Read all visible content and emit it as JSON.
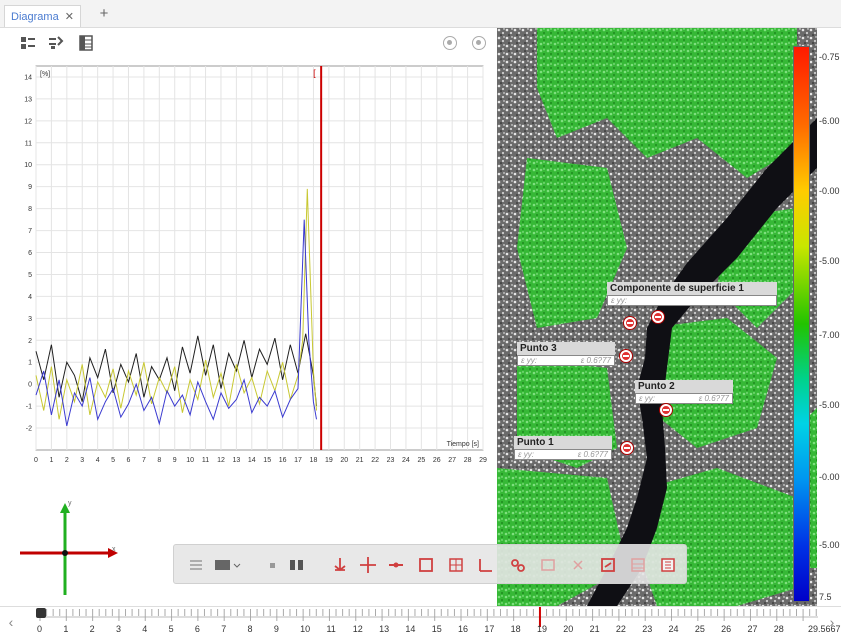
{
  "tabs": [
    {
      "label": "Diagrama",
      "close": "✕"
    }
  ],
  "tab_add": "+",
  "chart_data": {
    "type": "line",
    "xlabel": "Tiempo [s]",
    "ylabel": "[%]",
    "xlim": [
      0,
      29
    ],
    "ylim": [
      -3,
      14.5
    ],
    "xticks": [
      "0",
      "1",
      "2",
      "3",
      "4",
      "5",
      "6",
      "7",
      "8",
      "9",
      "10",
      "11",
      "12",
      "13",
      "14",
      "15",
      "16",
      "17",
      "18",
      "19",
      "20",
      "21",
      "22",
      "23",
      "24",
      "25",
      "26",
      "27",
      "28",
      "29"
    ],
    "yticks": [
      "14",
      "13",
      "12",
      "11",
      "10",
      "9",
      "8",
      "7",
      "6",
      "5",
      "4",
      "3",
      "2",
      "1",
      "0",
      "-1",
      "-2"
    ],
    "cursor_x": 18.5,
    "cursor_label": "[",
    "series": [
      {
        "color": "#1f1f1f",
        "x": [
          0,
          0.5,
          1,
          1.5,
          2,
          2.5,
          3,
          3.5,
          4,
          4.5,
          5,
          5.5,
          6,
          6.5,
          7,
          7.5,
          8,
          8.5,
          9,
          9.5,
          10,
          10.5,
          11,
          11.5,
          12,
          12.5,
          13,
          13.5,
          14,
          14.5,
          15,
          15.5,
          16,
          16.5,
          17,
          17.5,
          18,
          18.2
        ],
        "y": [
          1.5,
          0.2,
          1.8,
          -0.6,
          1.0,
          0.4,
          -0.8,
          1.2,
          0.3,
          1.6,
          -0.4,
          0.9,
          0.1,
          1.4,
          -0.6,
          0.8,
          0.2,
          1.2,
          -0.3,
          1.7,
          0.5,
          2.2,
          0.4,
          1.8,
          -0.2,
          1.4,
          0.6,
          2.0,
          0.3,
          1.6,
          0.9,
          2.1,
          0.2,
          1.8,
          0.5,
          2.3,
          0.4,
          -1.0
        ]
      },
      {
        "color": "#c8c832",
        "x": [
          0,
          0.5,
          1,
          1.5,
          2,
          2.5,
          3,
          3.5,
          4,
          4.5,
          5,
          5.5,
          6,
          6.5,
          7,
          7.5,
          8,
          8.5,
          9,
          9.5,
          10,
          10.5,
          11,
          11.5,
          12,
          12.5,
          13,
          13.5,
          14,
          14.5,
          15,
          15.5,
          16,
          16.5,
          17,
          17.3,
          17.6,
          18,
          18.2
        ],
        "y": [
          0.4,
          -1.2,
          0.8,
          -1.6,
          0.2,
          -0.8,
          0.9,
          -1.4,
          0.1,
          -0.6,
          0.7,
          -1.1,
          0.6,
          -0.5,
          1.0,
          -0.9,
          0.3,
          -0.4,
          0.8,
          -1.3,
          0.2,
          -0.7,
          1.1,
          -0.6,
          0.5,
          -1.0,
          0.9,
          -0.4,
          0.3,
          -0.9,
          0.6,
          -0.3,
          1.0,
          -0.7,
          0.4,
          2.0,
          8.9,
          0.6,
          -1.2
        ]
      },
      {
        "color": "#3a3ad0",
        "x": [
          0,
          0.5,
          1,
          1.5,
          2,
          2.5,
          3,
          3.5,
          4,
          4.5,
          5,
          5.5,
          6,
          6.5,
          7,
          7.5,
          8,
          8.5,
          9,
          9.5,
          10,
          10.5,
          11,
          11.5,
          12,
          12.5,
          13,
          13.5,
          14,
          14.5,
          15,
          15.5,
          16,
          16.5,
          17,
          17.4,
          17.7,
          18,
          18.2
        ],
        "y": [
          -0.5,
          0.6,
          -1.4,
          0.2,
          -1.9,
          -0.4,
          -1.0,
          0.3,
          -1.6,
          -0.8,
          -0.2,
          -1.5,
          -0.9,
          0.0,
          -1.2,
          -0.6,
          -1.8,
          -0.3,
          -1.0,
          -0.5,
          -1.4,
          0.1,
          -0.8,
          -1.6,
          -0.4,
          -1.1,
          -0.7,
          0.2,
          -1.3,
          -0.6,
          -1.0,
          -0.3,
          -1.5,
          -0.7,
          -0.2,
          7.5,
          2.0,
          -0.8,
          -1.6
        ]
      }
    ]
  },
  "image": {
    "points": [
      {
        "title": "Componente de superficie 1",
        "box_left": "ε yy:",
        "box_right": "",
        "markers": 2
      },
      {
        "title": "Punto 3",
        "box_left": "ε yy:",
        "box_right": "ε 0.6?77"
      },
      {
        "title": "Punto 2",
        "box_left": "ε yy:",
        "box_right": "ε 0.6?77"
      },
      {
        "title": "Punto 1",
        "box_left": "ε yy:",
        "box_right": "ε 0.6?77"
      }
    ]
  },
  "color_scale": {
    "labels": [
      "-0.75",
      "-6.00",
      "-0.00",
      "-5.00",
      "-7.00",
      "-5.00",
      "-0.00",
      "-5.00",
      "7.5"
    ]
  },
  "axes_widget": {
    "x_label": "x",
    "y_label": "y"
  },
  "float_toolbar": {
    "icons": [
      "list-icon",
      "view-dropdown-icon",
      "cursor-icon",
      "split-icon",
      "anchor-icon",
      "crosshair-icon",
      "line-tool-icon",
      "rectangle-icon",
      "grid-icon",
      "angle-icon",
      "link-icon",
      "image-frame-icon",
      "delete-icon",
      "export-icon",
      "table-icon",
      "settings-icon"
    ]
  },
  "timeline": {
    "labels": [
      "0",
      "1",
      "2",
      "3",
      "4",
      "5",
      "6",
      "7",
      "8",
      "9",
      "10",
      "11",
      "12",
      "13",
      "14",
      "15",
      "16",
      "17",
      "18",
      "19",
      "20",
      "21",
      "22",
      "23",
      "24",
      "25",
      "26",
      "27",
      "28",
      "29.5667"
    ],
    "cursor_value": 19,
    "prev": "‹",
    "next": "›"
  }
}
